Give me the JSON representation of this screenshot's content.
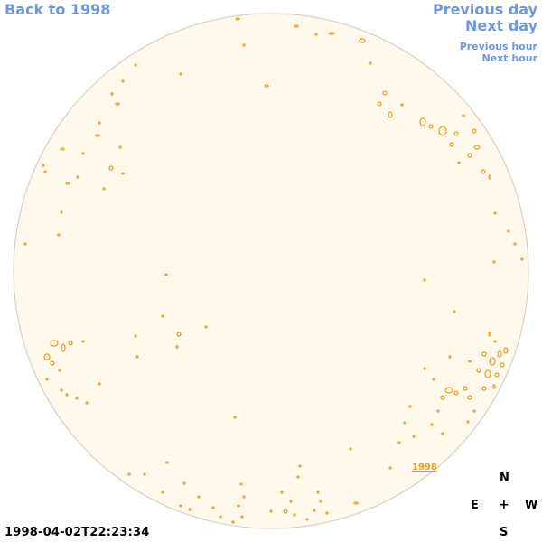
{
  "nav": {
    "back_label": "Back to 1998",
    "prev_day_label": "Previous day",
    "next_day_label": "Next day",
    "prev_hour_label": "Previous hour",
    "next_hour_label": "Next hour"
  },
  "disk": {
    "year_label": "1998",
    "fill_color": "#fef9ec",
    "edge_color": "#d9d0c0",
    "contour_color": "#f09a1a"
  },
  "timestamp": "1998-04-02T22:23:34",
  "compass": {
    "n": "N",
    "e": "E",
    "center": "+",
    "w": "W",
    "s": "S"
  }
}
